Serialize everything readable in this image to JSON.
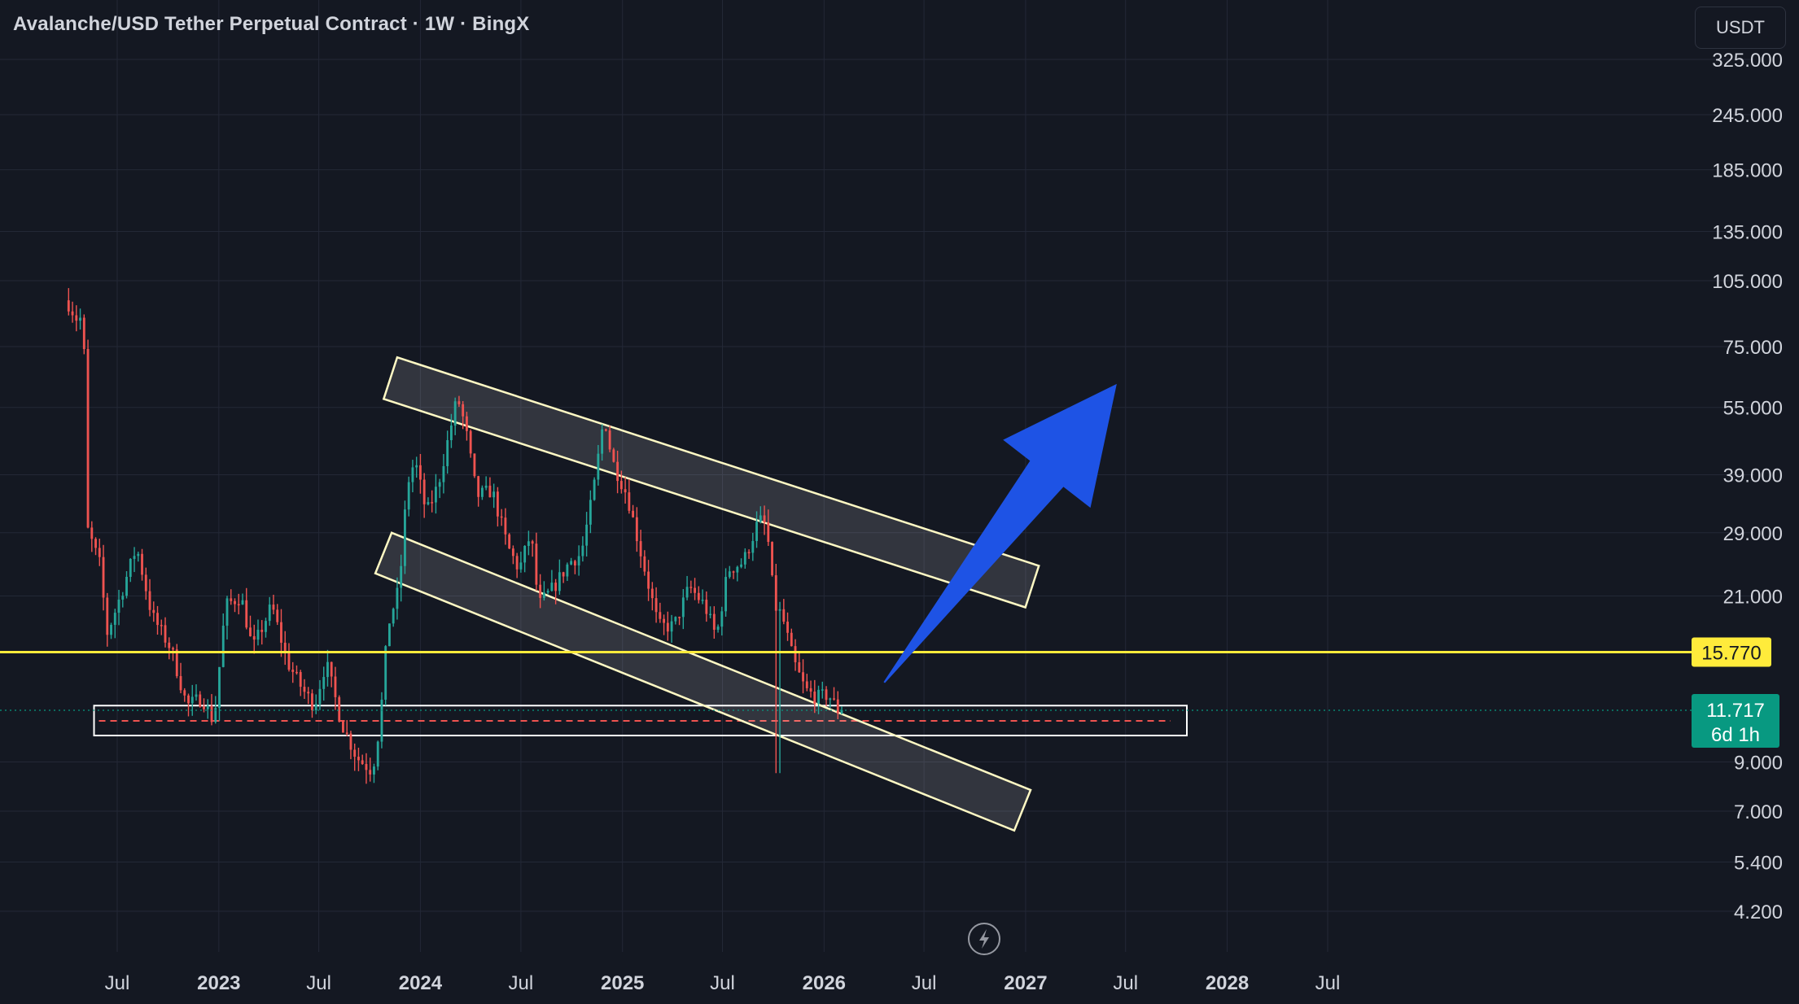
{
  "header": {
    "title": "Avalanche/USD Tether Perpetual Contract · 1W · BingX",
    "currency_button": "USDT"
  },
  "chart_data": {
    "type": "candlestick",
    "scale": "log",
    "y_ticks": [
      "325.000",
      "245.000",
      "185.000",
      "135.000",
      "105.000",
      "75.000",
      "55.000",
      "39.000",
      "29.000",
      "21.000",
      "9.000",
      "7.000",
      "5.400",
      "4.200"
    ],
    "x_ticks": [
      {
        "label": "Jul",
        "date": "2022-07"
      },
      {
        "label": "2023",
        "date": "2023-01",
        "year": true
      },
      {
        "label": "Jul",
        "date": "2023-07"
      },
      {
        "label": "2024",
        "date": "2024-01",
        "year": true
      },
      {
        "label": "Jul",
        "date": "2024-07"
      },
      {
        "label": "2025",
        "date": "2025-01",
        "year": true
      },
      {
        "label": "Jul",
        "date": "2025-07"
      },
      {
        "label": "2026",
        "date": "2026-01",
        "year": true
      },
      {
        "label": "Jul",
        "date": "2026-07"
      },
      {
        "label": "2027",
        "date": "2027-01",
        "year": true
      },
      {
        "label": "Jul",
        "date": "2027-07"
      },
      {
        "label": "2028",
        "date": "2028-01",
        "year": true
      },
      {
        "label": "Jul",
        "date": "2028-07"
      }
    ],
    "price_path": [
      [
        "2022-04-08",
        95
      ],
      [
        "2022-04-29",
        85
      ],
      [
        "2022-05-08",
        90
      ],
      [
        "2022-05-13",
        30
      ],
      [
        "2022-06-10",
        24
      ],
      [
        "2022-06-17",
        17
      ],
      [
        "2022-07-08",
        20
      ],
      [
        "2022-08-12",
        27
      ],
      [
        "2022-09-09",
        19
      ],
      [
        "2022-10-14",
        16
      ],
      [
        "2022-11-11",
        12
      ],
      [
        "2022-12-09",
        12.5
      ],
      [
        "2022-12-30",
        11
      ],
      [
        "2023-01-20",
        20
      ],
      [
        "2023-02-17",
        21
      ],
      [
        "2023-03-10",
        16
      ],
      [
        "2023-04-14",
        20
      ],
      [
        "2023-05-12",
        15
      ],
      [
        "2023-06-09",
        13
      ],
      [
        "2023-06-30",
        12
      ],
      [
        "2023-07-21",
        15
      ],
      [
        "2023-08-18",
        11
      ],
      [
        "2023-09-15",
        9.2
      ],
      [
        "2023-10-13",
        8.6
      ],
      [
        "2023-10-27",
        11
      ],
      [
        "2023-11-10",
        18
      ],
      [
        "2023-12-01",
        22
      ],
      [
        "2023-12-15",
        37
      ],
      [
        "2023-12-29",
        42
      ],
      [
        "2024-01-19",
        32
      ],
      [
        "2024-02-09",
        37
      ],
      [
        "2024-03-15",
        58
      ],
      [
        "2024-03-29",
        50
      ],
      [
        "2024-04-19",
        35
      ],
      [
        "2024-05-17",
        36
      ],
      [
        "2024-06-14",
        27
      ],
      [
        "2024-07-05",
        24
      ],
      [
        "2024-07-26",
        29
      ],
      [
        "2024-08-09",
        20
      ],
      [
        "2024-09-06",
        22
      ],
      [
        "2024-10-04",
        25
      ],
      [
        "2024-10-25",
        26
      ],
      [
        "2024-11-15",
        35
      ],
      [
        "2024-12-06",
        53
      ],
      [
        "2024-12-20",
        42
      ],
      [
        "2025-01-17",
        35
      ],
      [
        "2025-02-14",
        25
      ],
      [
        "2025-03-14",
        18
      ],
      [
        "2025-04-11",
        18
      ],
      [
        "2025-05-09",
        22
      ],
      [
        "2025-06-06",
        20
      ],
      [
        "2025-06-27",
        17
      ],
      [
        "2025-07-18",
        24
      ],
      [
        "2025-08-15",
        25
      ],
      [
        "2025-09-12",
        31
      ],
      [
        "2025-09-26",
        30
      ],
      [
        "2025-10-10",
        20
      ],
      [
        "2025-10-24",
        19
      ],
      [
        "2025-11-14",
        15
      ],
      [
        "2025-12-05",
        13
      ],
      [
        "2025-12-26",
        12.5
      ],
      [
        "2026-01-16",
        12.7
      ],
      [
        "2026-02-02",
        11.717
      ]
    ],
    "wick_low": {
      "date": "2025-10-10",
      "price": 8.5
    },
    "lines": {
      "support_price": 15.77,
      "last_price": 11.717,
      "red_dashed_price": 11.1
    },
    "labels": {
      "support_price_label": "15.770",
      "last_price_label": "11.717",
      "countdown": "6d 1h"
    },
    "support_zone": {
      "from": "2022-05-20",
      "to": "2027-10-20",
      "low": 10.3,
      "high": 12.0
    },
    "channel": {
      "upper": {
        "start": [
          "2023-11-20",
          71
        ],
        "end": [
          "2027-01-25",
          24.5
        ],
        "width_price_factor": 1.25
      },
      "lower": {
        "start": [
          "2023-11-10",
          29
        ],
        "end": [
          "2027-01-10",
          7.8
        ],
        "width_price_factor": 1.25
      }
    },
    "arrow": {
      "from": [
        "2026-04-20",
        13.5
      ],
      "to": [
        "2027-06-15",
        62
      ]
    },
    "colors": {
      "up": "#26a69a",
      "down": "#ef5350",
      "support": "#ffeb3b",
      "channel": "#fff9c4",
      "arrow": "#1e53e5",
      "last": "#089981"
    }
  }
}
